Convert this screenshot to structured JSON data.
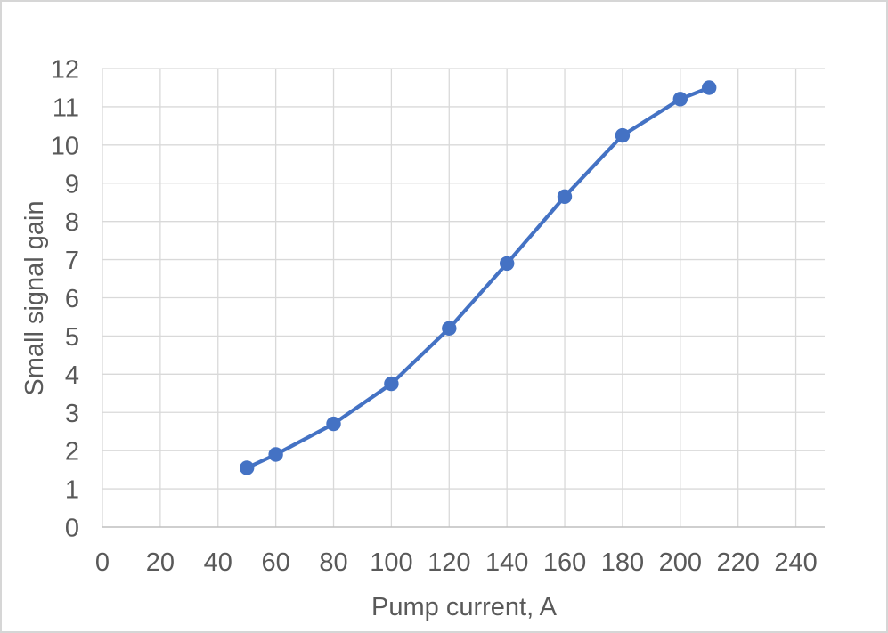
{
  "chart_data": {
    "type": "line",
    "title": "",
    "xlabel": "Pump current, A",
    "ylabel": "Small signal gain",
    "x": [
      50,
      60,
      80,
      100,
      120,
      140,
      160,
      180,
      200,
      210
    ],
    "series": [
      {
        "name": "Small signal gain",
        "values": [
          1.55,
          1.9,
          2.7,
          3.75,
          5.2,
          6.9,
          8.65,
          10.25,
          11.2,
          11.5
        ]
      }
    ],
    "xlim": [
      0,
      250
    ],
    "ylim": [
      0,
      12
    ],
    "x_ticks": [
      0,
      20,
      40,
      60,
      80,
      100,
      120,
      140,
      160,
      180,
      200,
      220,
      240
    ],
    "y_ticks": [
      0,
      1,
      2,
      3,
      4,
      5,
      6,
      7,
      8,
      9,
      10,
      11,
      12
    ],
    "grid": true,
    "legend": "none",
    "marker": "circle",
    "line_style": "solid",
    "colors": {
      "series": "#4472C4",
      "gridline": "#D9D9D9",
      "axis_line": "#BFBFBF",
      "tick_text": "#595959",
      "axis_title_text": "#595959",
      "frame_border": "#D6D6D6",
      "background": "#FFFFFF"
    }
  }
}
